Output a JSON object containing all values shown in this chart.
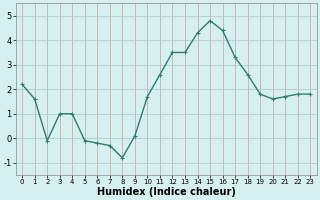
{
  "x": [
    0,
    1,
    2,
    3,
    4,
    5,
    6,
    7,
    8,
    9,
    10,
    11,
    12,
    13,
    14,
    15,
    16,
    17,
    18,
    19,
    20,
    21,
    22,
    23
  ],
  "y": [
    2.2,
    1.6,
    -0.1,
    1.0,
    1.0,
    -0.1,
    -0.2,
    -0.3,
    -0.8,
    0.1,
    1.7,
    2.6,
    3.5,
    3.5,
    4.3,
    4.8,
    4.4,
    3.3,
    2.6,
    1.8,
    1.6,
    1.7,
    1.8,
    1.8
  ],
  "line_color": "#2e7d6e",
  "marker": "+",
  "markersize": 3,
  "linewidth": 1.0,
  "xlabel": "Humidex (Indice chaleur)",
  "xlabel_fontsize": 7,
  "bg_color": "#d6f0ef",
  "grid_color": "#c0dede",
  "grid_color2": "#e8b8b8",
  "ylim": [
    -1.5,
    5.5
  ],
  "xlim": [
    -0.5,
    23.5
  ],
  "yticks": [
    -1,
    0,
    1,
    2,
    3,
    4,
    5
  ],
  "xticks": [
    0,
    1,
    2,
    3,
    4,
    5,
    6,
    7,
    8,
    9,
    10,
    11,
    12,
    13,
    14,
    15,
    16,
    17,
    18,
    19,
    20,
    21,
    22,
    23
  ],
  "tick_fontsize": 6,
  "xlabel_fontsize_val": 7,
  "spine_color": "#888888"
}
